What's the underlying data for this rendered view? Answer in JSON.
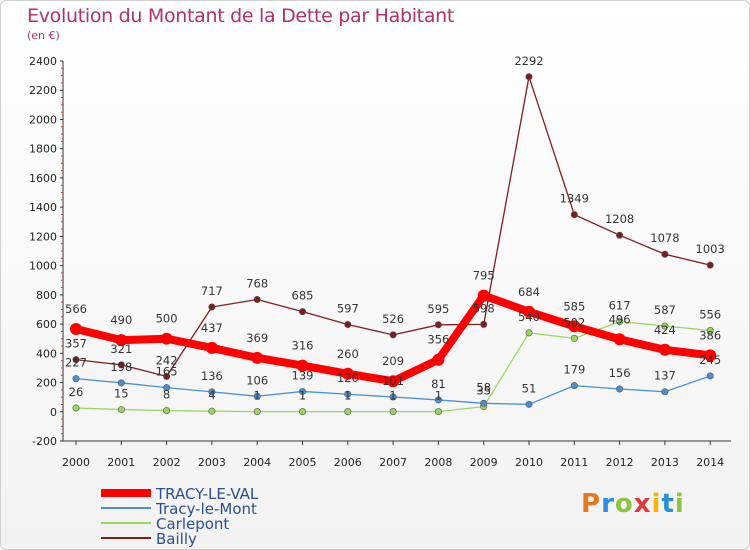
{
  "chart_data": {
    "type": "line",
    "title": "Evolution du Montant de la Dette par Habitant",
    "subtitle": "(en €)",
    "x": [
      "2000",
      "2001",
      "2002",
      "2003",
      "2004",
      "2005",
      "2006",
      "2007",
      "2008",
      "2009",
      "2010",
      "2011",
      "2012",
      "2013",
      "2014"
    ],
    "ylim": [
      -200,
      2400
    ],
    "yticks": [
      -200,
      0,
      200,
      400,
      600,
      800,
      1000,
      1200,
      1400,
      1600,
      1800,
      2000,
      2200,
      2400
    ],
    "grid": false,
    "legend_position": "bottom-left",
    "series": [
      {
        "name": "Bailly",
        "color": "#7a1f1f",
        "values": [
          357,
          321,
          242,
          717,
          768,
          685,
          597,
          526,
          595,
          598,
          2292,
          1349,
          1208,
          1078,
          1003
        ],
        "labels": [
          "357",
          "321",
          "242",
          "717",
          "768",
          "685",
          "597",
          "526",
          "595",
          "598",
          "2292",
          "1349",
          "1208",
          "1078",
          "1003"
        ]
      },
      {
        "name": "Carlepont",
        "color": "#99d65e",
        "values": [
          26,
          15,
          8,
          4,
          1,
          1,
          1,
          1,
          1,
          35,
          540,
          502,
          617,
          587,
          556
        ],
        "labels": [
          "26",
          "15",
          "8",
          "4",
          "1",
          "1",
          "1",
          "1",
          "1",
          "35",
          "540",
          "502",
          "617",
          "587",
          "556"
        ]
      },
      {
        "name": "Tracy-le-Mont",
        "color": "#4a8fd0",
        "values": [
          227,
          198,
          165,
          136,
          106,
          139,
          120,
          101,
          81,
          58,
          51,
          179,
          156,
          137,
          245
        ],
        "labels": [
          "227",
          "198",
          "165",
          "136",
          "106",
          "139",
          "120",
          "101",
          "81",
          "58",
          "51",
          "179",
          "156",
          "137",
          "245"
        ]
      },
      {
        "name": "TRACY-LE-VAL",
        "color": "#ff0000",
        "values": [
          566,
          490,
          500,
          437,
          369,
          316,
          260,
          209,
          356,
          795,
          684,
          585,
          496,
          424,
          386
        ],
        "labels": [
          "566",
          "490",
          "500",
          "437",
          "369",
          "316",
          "260",
          "209",
          "356",
          "795",
          "684",
          "585",
          "496",
          "424",
          "386"
        ]
      }
    ],
    "legend": [
      "TRACY-LE-VAL",
      "Tracy-le-Mont",
      "Carlepont",
      "Bailly"
    ]
  },
  "logo": {
    "text": "Proxiti"
  }
}
